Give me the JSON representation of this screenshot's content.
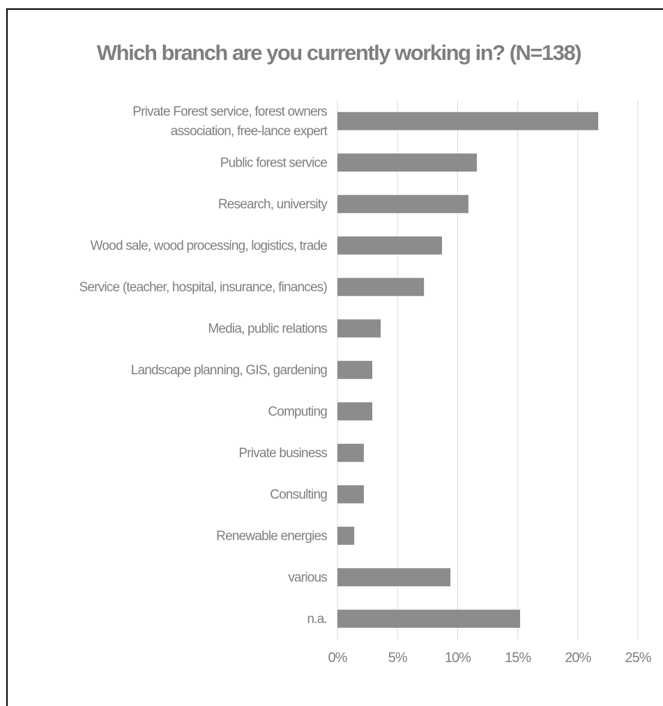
{
  "chart_data": {
    "type": "bar",
    "orientation": "horizontal",
    "title": "Which branch are you currently working in? (N=138)",
    "categories": [
      [
        "Private Forest service, forest owners",
        "association,  free-lance expert"
      ],
      [
        "Public forest service"
      ],
      [
        "Research, university"
      ],
      [
        "Wood sale, wood  processing, logistics, trade"
      ],
      [
        "Service (teacher, hospital, insurance, finances)"
      ],
      [
        "Media, public relations"
      ],
      [
        "Landscape planning, GIS, gardening"
      ],
      [
        "Computing"
      ],
      [
        "Private business"
      ],
      [
        "Consulting"
      ],
      [
        "Renewable energies"
      ],
      [
        "various"
      ],
      [
        "n.a."
      ]
    ],
    "values": [
      21.7,
      11.6,
      10.9,
      8.7,
      7.2,
      3.6,
      2.9,
      2.9,
      2.2,
      2.2,
      1.4,
      9.4,
      15.2
    ],
    "xlim": [
      0,
      25
    ],
    "xticks": [
      "0%",
      "5%",
      "10%",
      "15%",
      "20%",
      "25%"
    ],
    "xlabel": "",
    "ylabel": "",
    "grid": "vertical",
    "legend": "none",
    "colors": {
      "bar": "#8c8c8c",
      "text": "#7f7f7f",
      "title": "#7f7f7f",
      "grid": "#d9d9d9",
      "frame": "#000000"
    }
  }
}
